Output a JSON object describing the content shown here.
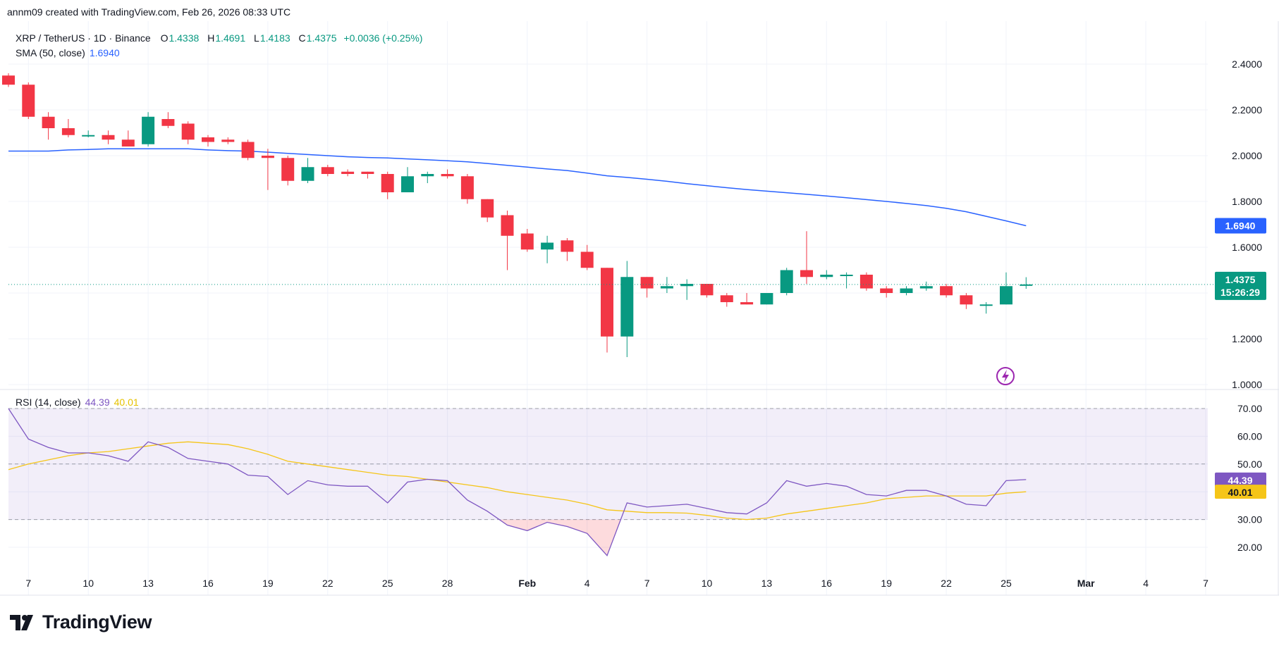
{
  "header": {
    "credit": "annm09 created with TradingView.com, Feb 26, 2026 08:33 UTC"
  },
  "legend": {
    "symbol": "XRP / TetherUS · 1D · Binance",
    "o_label": "O",
    "o_value": "1.4338",
    "h_label": "H",
    "h_value": "1.4691",
    "l_label": "L",
    "l_value": "1.4183",
    "c_label": "C",
    "c_value": "1.4375",
    "change": "+0.0036 (+0.25%)",
    "sma_label": "SMA (50, close)",
    "sma_value": "1.6940",
    "rsi_label": "RSI (14, close)",
    "rsi_value": "44.39",
    "rsi_ma_value": "40.01"
  },
  "brand": {
    "logo_text": "TradingView"
  },
  "colors": {
    "up": "#089981",
    "down": "#f23645",
    "sma": "#2962ff",
    "rsi": "#7e57c2",
    "rsi_ma": "#f5c518",
    "rsi_band": "#7e57c2"
  },
  "chart_data": [
    {
      "type": "candlestick",
      "title": "XRP / TetherUS · 1D · Binance",
      "x": [
        "Jan 6",
        "Jan 7",
        "Jan 8",
        "Jan 9",
        "Jan 10",
        "Jan 11",
        "Jan 12",
        "Jan 13",
        "Jan 14",
        "Jan 15",
        "Jan 16",
        "Jan 17",
        "Jan 18",
        "Jan 19",
        "Jan 20",
        "Jan 21",
        "Jan 22",
        "Jan 23",
        "Jan 24",
        "Jan 25",
        "Jan 26",
        "Jan 27",
        "Jan 28",
        "Jan 29",
        "Jan 30",
        "Jan 31",
        "Feb 1",
        "Feb 2",
        "Feb 3",
        "Feb 4",
        "Feb 5",
        "Feb 6",
        "Feb 7",
        "Feb 8",
        "Feb 9",
        "Feb 10",
        "Feb 11",
        "Feb 12",
        "Feb 13",
        "Feb 14",
        "Feb 15",
        "Feb 16",
        "Feb 17",
        "Feb 18",
        "Feb 19",
        "Feb 20",
        "Feb 21",
        "Feb 22",
        "Feb 23",
        "Feb 24",
        "Feb 25",
        "Feb 26"
      ],
      "ohlc": [
        [
          2.35,
          2.36,
          2.3,
          2.31
        ],
        [
          2.31,
          2.32,
          2.16,
          2.17
        ],
        [
          2.17,
          2.19,
          2.07,
          2.12
        ],
        [
          2.12,
          2.16,
          2.08,
          2.09
        ],
        [
          2.09,
          2.11,
          2.08,
          2.09
        ],
        [
          2.09,
          2.11,
          2.05,
          2.07
        ],
        [
          2.07,
          2.11,
          2.04,
          2.04
        ],
        [
          2.05,
          2.19,
          2.04,
          2.17
        ],
        [
          2.16,
          2.19,
          2.12,
          2.13
        ],
        [
          2.14,
          2.15,
          2.05,
          2.07
        ],
        [
          2.08,
          2.09,
          2.04,
          2.06
        ],
        [
          2.07,
          2.08,
          2.05,
          2.06
        ],
        [
          2.06,
          2.07,
          1.98,
          1.99
        ],
        [
          2.0,
          2.03,
          1.85,
          1.99
        ],
        [
          1.99,
          2.0,
          1.87,
          1.89
        ],
        [
          1.89,
          1.99,
          1.88,
          1.95
        ],
        [
          1.95,
          1.96,
          1.91,
          1.92
        ],
        [
          1.93,
          1.94,
          1.91,
          1.92
        ],
        [
          1.93,
          1.93,
          1.9,
          1.92
        ],
        [
          1.92,
          1.93,
          1.81,
          1.84
        ],
        [
          1.84,
          1.95,
          1.84,
          1.91
        ],
        [
          1.91,
          1.93,
          1.88,
          1.92
        ],
        [
          1.92,
          1.94,
          1.9,
          1.91
        ],
        [
          1.91,
          1.92,
          1.79,
          1.81
        ],
        [
          1.81,
          1.81,
          1.71,
          1.73
        ],
        [
          1.74,
          1.76,
          1.5,
          1.65
        ],
        [
          1.66,
          1.68,
          1.58,
          1.59
        ],
        [
          1.59,
          1.65,
          1.53,
          1.62
        ],
        [
          1.63,
          1.64,
          1.54,
          1.58
        ],
        [
          1.58,
          1.61,
          1.5,
          1.51
        ],
        [
          1.51,
          1.51,
          1.14,
          1.21
        ],
        [
          1.21,
          1.54,
          1.12,
          1.47
        ],
        [
          1.47,
          1.47,
          1.38,
          1.42
        ],
        [
          1.42,
          1.47,
          1.4,
          1.43
        ],
        [
          1.43,
          1.46,
          1.37,
          1.44
        ],
        [
          1.44,
          1.44,
          1.38,
          1.39
        ],
        [
          1.39,
          1.4,
          1.34,
          1.36
        ],
        [
          1.36,
          1.4,
          1.35,
          1.35
        ],
        [
          1.35,
          1.4,
          1.35,
          1.4
        ],
        [
          1.4,
          1.51,
          1.39,
          1.5
        ],
        [
          1.5,
          1.67,
          1.44,
          1.47
        ],
        [
          1.47,
          1.5,
          1.46,
          1.48
        ],
        [
          1.48,
          1.49,
          1.42,
          1.48
        ],
        [
          1.48,
          1.49,
          1.41,
          1.42
        ],
        [
          1.42,
          1.43,
          1.38,
          1.4
        ],
        [
          1.4,
          1.43,
          1.39,
          1.42
        ],
        [
          1.42,
          1.45,
          1.41,
          1.43
        ],
        [
          1.43,
          1.44,
          1.38,
          1.39
        ],
        [
          1.39,
          1.4,
          1.33,
          1.35
        ],
        [
          1.35,
          1.36,
          1.31,
          1.35
        ],
        [
          1.35,
          1.49,
          1.35,
          1.43
        ],
        [
          1.4338,
          1.4691,
          1.4183,
          1.4375
        ]
      ],
      "sma": {
        "name": "SMA (50, close)",
        "values": [
          2.02,
          2.02,
          2.02,
          2.025,
          2.027,
          2.03,
          2.03,
          2.03,
          2.03,
          2.03,
          2.025,
          2.022,
          2.02,
          2.015,
          2.01,
          2.005,
          2.0,
          1.995,
          1.992,
          1.99,
          1.986,
          1.982,
          1.978,
          1.973,
          1.966,
          1.958,
          1.95,
          1.942,
          1.935,
          1.924,
          1.912,
          1.905,
          1.897,
          1.888,
          1.878,
          1.869,
          1.86,
          1.852,
          1.845,
          1.838,
          1.831,
          1.824,
          1.816,
          1.808,
          1.8,
          1.791,
          1.782,
          1.77,
          1.755,
          1.735,
          1.715,
          1.694
        ]
      },
      "ylim": [
        1.0,
        2.47
      ],
      "y_ticks": [
        "1.0000",
        "1.2000",
        "1.4000",
        "1.6000",
        "1.8000",
        "2.0000",
        "2.2000",
        "2.4000"
      ],
      "last_price_label": "1.4375",
      "countdown": "15:26:29",
      "sma_price_label": "1.6940",
      "x_ticks": [
        {
          "i": 1,
          "label": "7"
        },
        {
          "i": 4,
          "label": "10"
        },
        {
          "i": 7,
          "label": "13"
        },
        {
          "i": 10,
          "label": "16"
        },
        {
          "i": 13,
          "label": "19"
        },
        {
          "i": 16,
          "label": "22"
        },
        {
          "i": 19,
          "label": "25"
        },
        {
          "i": 22,
          "label": "28"
        },
        {
          "i": 26,
          "label": "Feb"
        },
        {
          "i": 29,
          "label": "4"
        },
        {
          "i": 32,
          "label": "7"
        },
        {
          "i": 35,
          "label": "10"
        },
        {
          "i": 38,
          "label": "13"
        },
        {
          "i": 41,
          "label": "16"
        },
        {
          "i": 44,
          "label": "19"
        },
        {
          "i": 47,
          "label": "22"
        },
        {
          "i": 50,
          "label": "25"
        },
        {
          "i": 54,
          "label": "Mar"
        },
        {
          "i": 57,
          "label": "4"
        },
        {
          "i": 60,
          "label": "7"
        }
      ]
    },
    {
      "type": "line",
      "title": "RSI (14, close)",
      "series": [
        {
          "name": "RSI (14, close)",
          "values": [
            70,
            59,
            56,
            54,
            54,
            53,
            51,
            58,
            56,
            52,
            51,
            50,
            46,
            45.5,
            39,
            44,
            42.5,
            42,
            42,
            36,
            43.5,
            44.5,
            44,
            37,
            33,
            28,
            26,
            29,
            27.5,
            25,
            17,
            36,
            34.5,
            35,
            35.5,
            34,
            32.5,
            32,
            36,
            44,
            42,
            43,
            42,
            39,
            38.5,
            40.5,
            40.5,
            38.5,
            35.5,
            35,
            44,
            44.39
          ]
        },
        {
          "name": "MA",
          "values": [
            48,
            50,
            51.5,
            53,
            54,
            54.5,
            55.5,
            56.5,
            57.5,
            58,
            57.5,
            57,
            55.5,
            53.5,
            51,
            50,
            49,
            48,
            47,
            46,
            45.5,
            44.5,
            43.5,
            42.5,
            41.5,
            40,
            39,
            38,
            37,
            35.5,
            33.5,
            33,
            32.5,
            32.5,
            32.3,
            31.5,
            30.5,
            30,
            30.5,
            32,
            33,
            34,
            35,
            36,
            37.5,
            38,
            38.5,
            38.5,
            38.5,
            38.5,
            39.5,
            40.01
          ]
        }
      ],
      "ylim": [
        13,
        71
      ],
      "y_ticks": [
        "20.00",
        "30.00",
        "40.00",
        "50.00",
        "60.00",
        "70.00"
      ],
      "bands": [
        30,
        50,
        70
      ],
      "last_labels": [
        "44.39",
        "40.01"
      ]
    }
  ]
}
